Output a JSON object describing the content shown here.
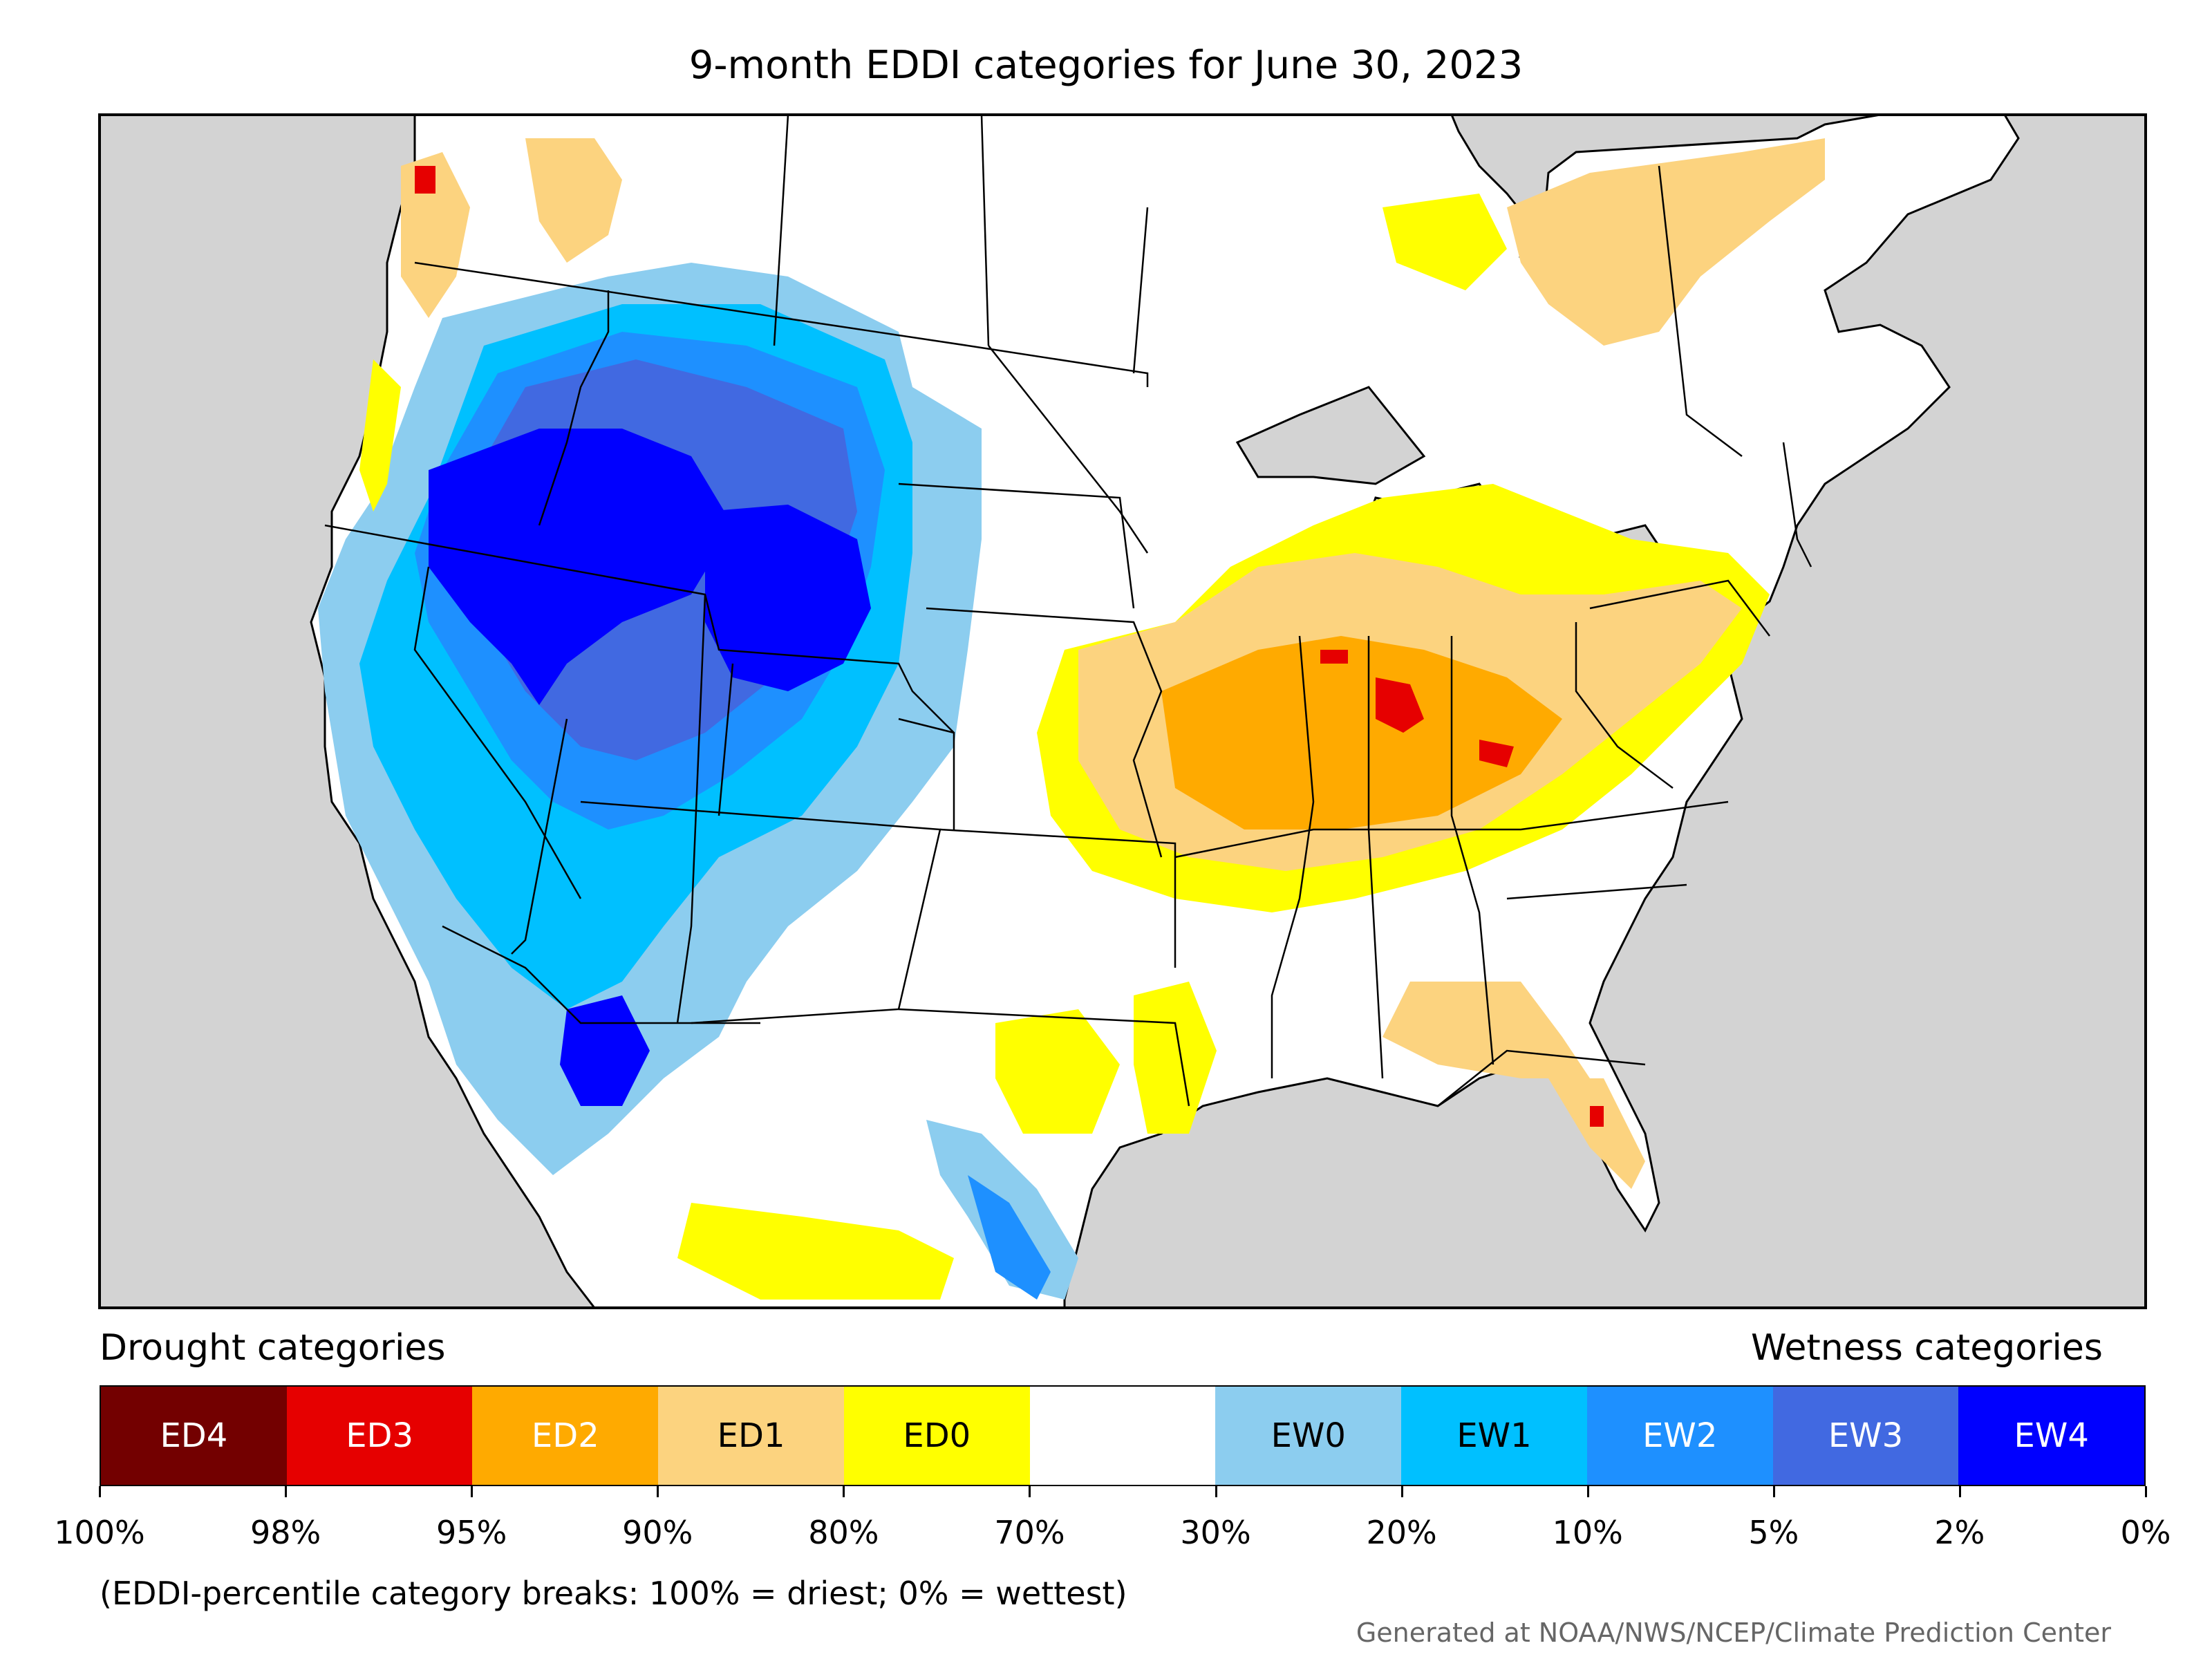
{
  "title": "9-month EDDI categories for June 30, 2023",
  "legend": {
    "drought_heading": "Drought categories",
    "wetness_heading": "Wetness categories",
    "categories": [
      {
        "label": "ED4",
        "color": "#730000",
        "text_color": "#ffffff"
      },
      {
        "label": "ED3",
        "color": "#e60000",
        "text_color": "#ffffff"
      },
      {
        "label": "ED2",
        "color": "#ffaa00",
        "text_color": "#ffffff"
      },
      {
        "label": "ED1",
        "color": "#fcd37f",
        "text_color": "#000000"
      },
      {
        "label": "ED0",
        "color": "#ffff00",
        "text_color": "#000000"
      },
      {
        "label": "",
        "color": "#ffffff",
        "text_color": "#000000"
      },
      {
        "label": "EW0",
        "color": "#8ccdef",
        "text_color": "#000000"
      },
      {
        "label": "EW1",
        "color": "#00c0ff",
        "text_color": "#000000"
      },
      {
        "label": "EW2",
        "color": "#1e90ff",
        "text_color": "#ffffff"
      },
      {
        "label": "EW3",
        "color": "#4169e1",
        "text_color": "#ffffff"
      },
      {
        "label": "EW4",
        "color": "#0000ff",
        "text_color": "#ffffff"
      }
    ],
    "ticks": [
      "100%",
      "98%",
      "95%",
      "90%",
      "80%",
      "70%",
      "30%",
      "20%",
      "10%",
      "5%",
      "2%",
      "0%"
    ],
    "note": "(EDDI-percentile category breaks: 100% = driest; 0% = wettest)"
  },
  "credit": "Generated at NOAA/NWS/NCEP/Climate Prediction Center",
  "map": {
    "background_color": "#d3d3d3",
    "lakes_color": "#d3d3d3"
  }
}
